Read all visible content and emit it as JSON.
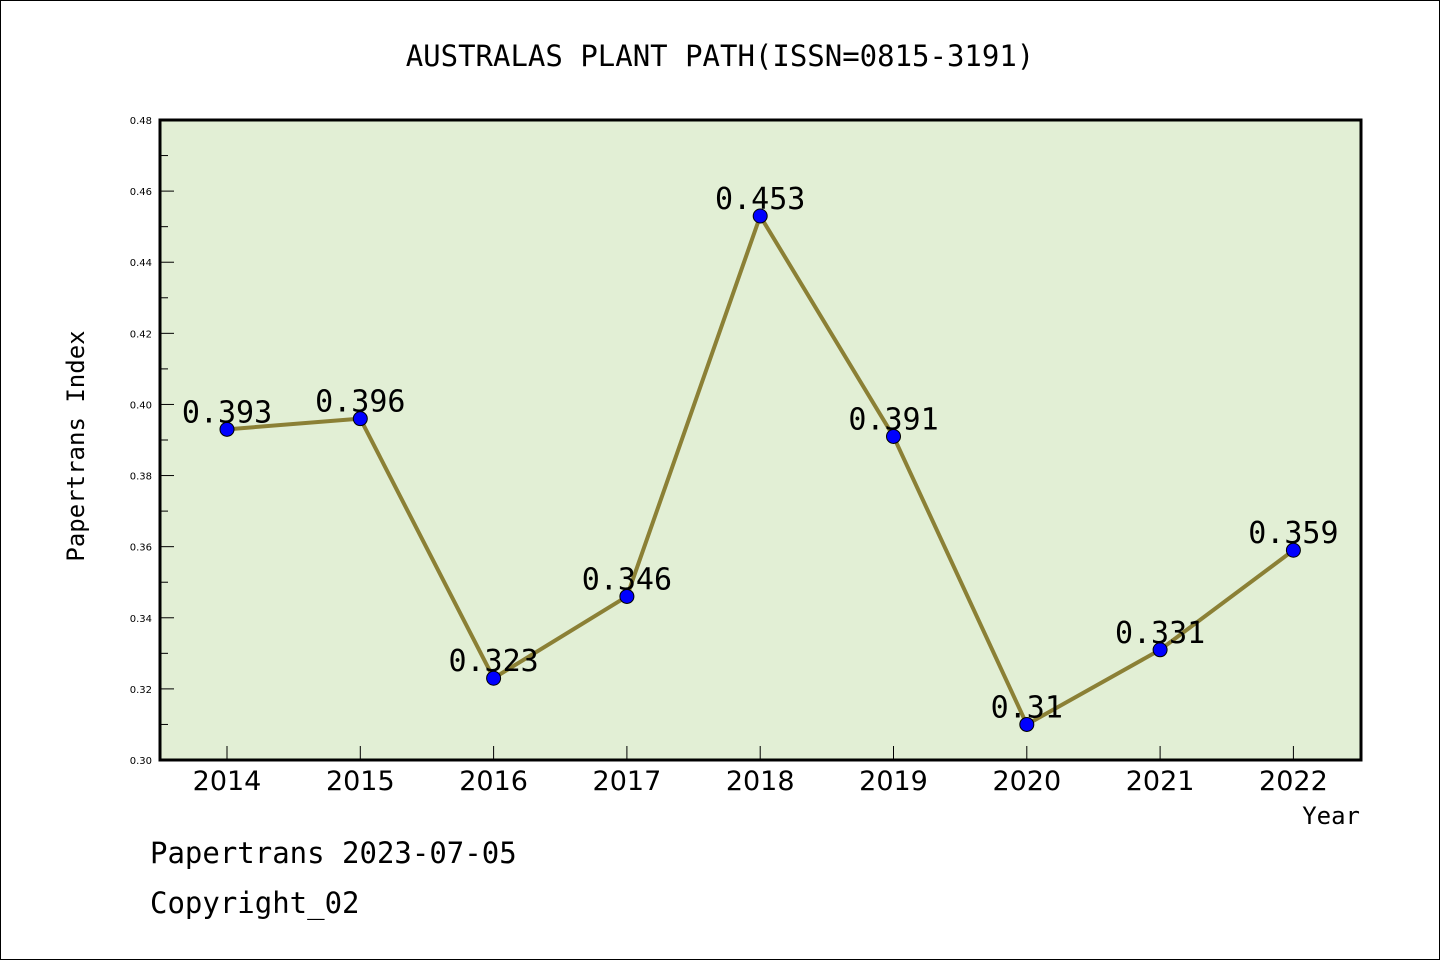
{
  "chart_data": {
    "type": "line",
    "title": "AUSTRALAS PLANT PATH(ISSN=0815-3191)",
    "xlabel": "Year",
    "ylabel": "Papertrans Index",
    "categories": [
      "2014",
      "2015",
      "2016",
      "2017",
      "2018",
      "2019",
      "2020",
      "2021",
      "2022"
    ],
    "values": [
      0.393,
      0.396,
      0.323,
      0.346,
      0.453,
      0.391,
      0.31,
      0.331,
      0.359
    ],
    "data_labels": [
      "0.393",
      "0.396",
      "0.323",
      "0.346",
      "0.453",
      "0.391",
      "0.31",
      "0.331",
      "0.359"
    ],
    "ylim": [
      0.3,
      0.48
    ],
    "yticks": [
      "0.30",
      "0.32",
      "0.34",
      "0.36",
      "0.38",
      "0.40",
      "0.42",
      "0.44",
      "0.46",
      "0.48"
    ],
    "grid": false,
    "colors": {
      "plot_background": "#e2efd5",
      "line": "#8b8035",
      "marker": "#0000ff"
    }
  },
  "footer": {
    "line1": "Papertrans 2023-07-05",
    "line2": "Copyright_02"
  }
}
